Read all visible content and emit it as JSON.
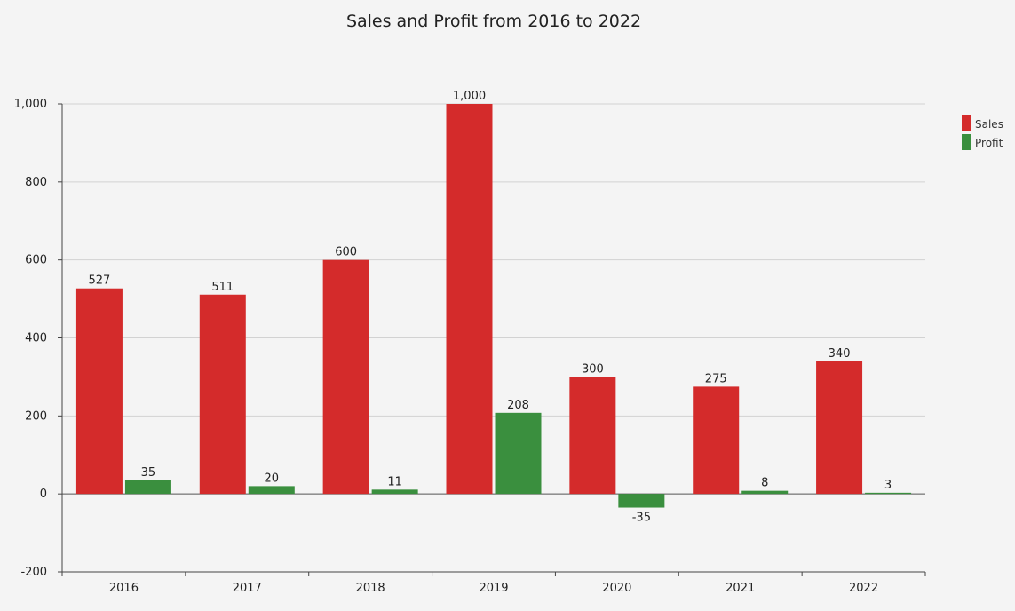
{
  "chart_data": {
    "type": "bar",
    "title": "Sales and Profit from 2016 to 2022",
    "xlabel": "",
    "ylabel": "",
    "categories": [
      "2016",
      "2017",
      "2018",
      "2019",
      "2020",
      "2021",
      "2022"
    ],
    "series": [
      {
        "name": "Sales",
        "color": "#d42b2b",
        "values": [
          527,
          511,
          600,
          1000,
          300,
          275,
          340
        ],
        "labels": [
          "527",
          "511",
          "600",
          "1,000",
          "300",
          "275",
          "340"
        ]
      },
      {
        "name": "Profit",
        "color": "#3a8f3e",
        "values": [
          35,
          20,
          11,
          208,
          -35,
          8,
          3
        ],
        "labels": [
          "35",
          "20",
          "11",
          "208",
          "-35",
          "8",
          "3"
        ]
      }
    ],
    "ylim": [
      -200,
      1000
    ],
    "yticks": [
      -200,
      0,
      200,
      400,
      600,
      800,
      1000
    ],
    "ytick_labels": [
      "-200",
      "0",
      "200",
      "400",
      "600",
      "800",
      "1,000"
    ],
    "grid": true,
    "legend_position": "top-right"
  }
}
